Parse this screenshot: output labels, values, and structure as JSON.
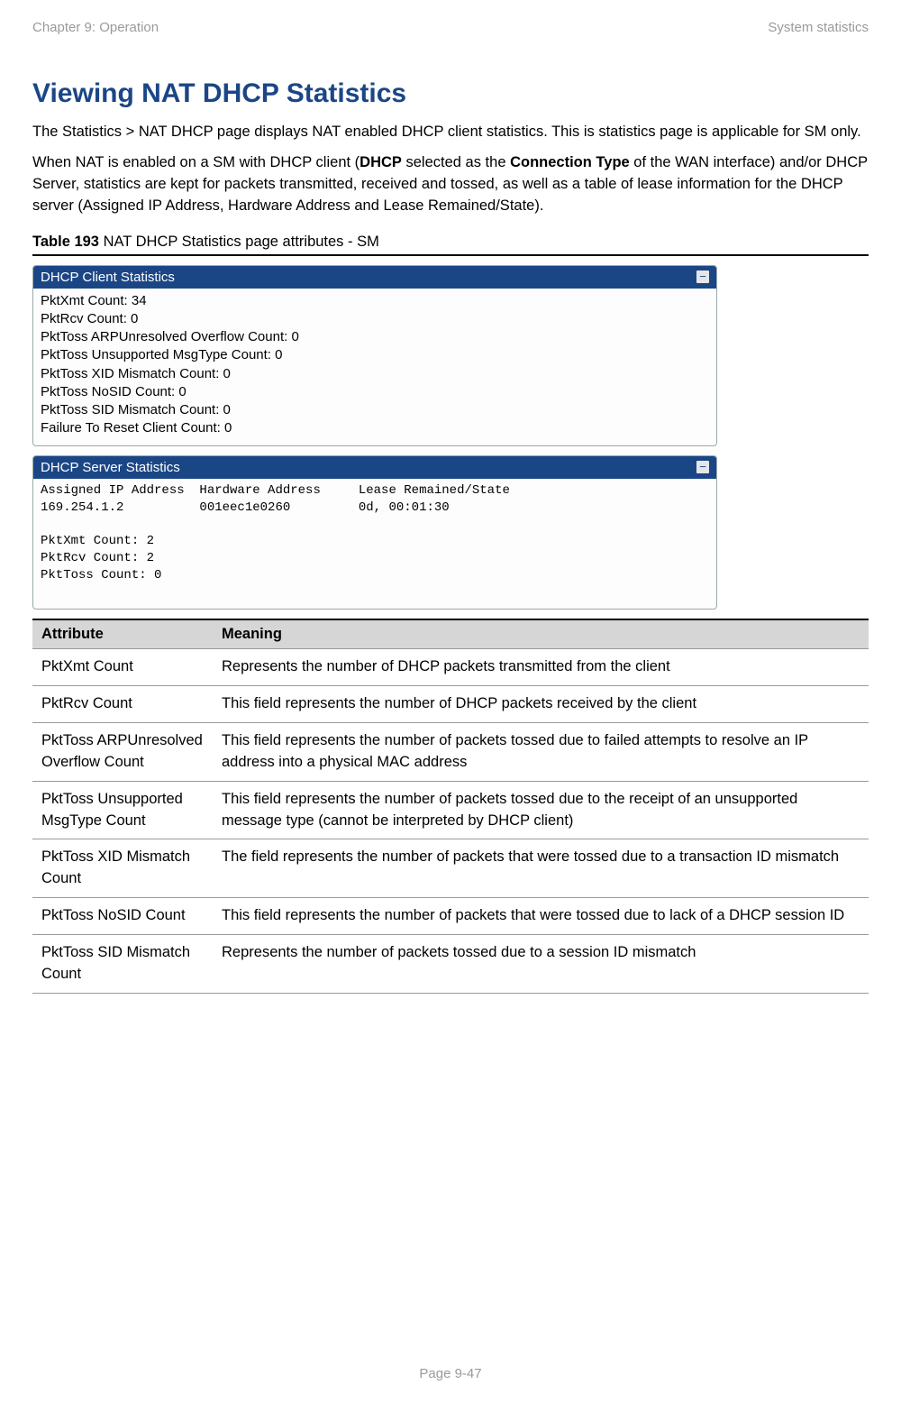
{
  "header": {
    "left": "Chapter 9:  Operation",
    "right": "System statistics"
  },
  "title": "Viewing NAT DHCP Statistics",
  "paragraphs": {
    "p1": "The Statistics > NAT DHCP page displays NAT enabled DHCP client statistics. This is statistics page is applicable for SM only.",
    "p2a": "When NAT is enabled on a SM with DHCP client (",
    "p2b": "DHCP",
    "p2c": " selected as the ",
    "p2d": "Connection Type",
    "p2e": " of the WAN interface) and/or DHCP Server, statistics are kept for packets transmitted, received and tossed, as well as a table of lease information for the DHCP server (Assigned IP Address, Hardware Address and Lease Remained/State)."
  },
  "table_caption": {
    "label": "Table 193",
    "rest": " NAT DHCP Statistics page attributes - SM"
  },
  "client_panel": {
    "title": "DHCP Client Statistics",
    "lines": [
      "PktXmt Count: 34",
      "PktRcv Count: 0",
      "PktToss ARPUnresolved Overflow Count: 0",
      "PktToss Unsupported MsgType Count: 0",
      "PktToss XID Mismatch Count: 0",
      "PktToss NoSID Count: 0",
      "PktToss SID Mismatch Count: 0",
      "Failure To Reset Client Count: 0"
    ]
  },
  "server_panel": {
    "title": "DHCP Server Statistics",
    "header_line": "Assigned IP Address  Hardware Address     Lease Remained/State",
    "data_line": "169.254.1.2          001eec1e0260         0d, 00:01:30",
    "counts": [
      "PktXmt Count: 2",
      "PktRcv Count: 2",
      "PktToss Count: 0"
    ]
  },
  "attr_table": {
    "headers": {
      "attr": "Attribute",
      "meaning": "Meaning"
    },
    "rows": [
      {
        "attr": "PktXmt Count",
        "meaning": "Represents the number of DHCP packets transmitted from the client"
      },
      {
        "attr": "PktRcv Count",
        "meaning": "This field represents the number of DHCP packets received by the client"
      },
      {
        "attr": "PktToss ARPUnresolved Overflow Count",
        "meaning": "This field represents the number of packets tossed due to failed attempts to resolve an IP address into a physical MAC address"
      },
      {
        "attr": "PktToss Unsupported MsgType Count",
        "meaning": "This field represents the number of packets tossed due to the receipt of an unsupported message type (cannot be interpreted by DHCP client)"
      },
      {
        "attr": "PktToss XID Mismatch Count",
        "meaning": "The field represents the number of packets that were tossed due to a transaction ID mismatch"
      },
      {
        "attr": "PktToss NoSID Count",
        "meaning": "This field represents the number of packets that were tossed due to lack of a DHCP session ID"
      },
      {
        "attr": "PktToss SID Mismatch Count",
        "meaning": "Represents the number of packets tossed due to a session ID mismatch"
      }
    ]
  },
  "footer": "Page 9-47"
}
